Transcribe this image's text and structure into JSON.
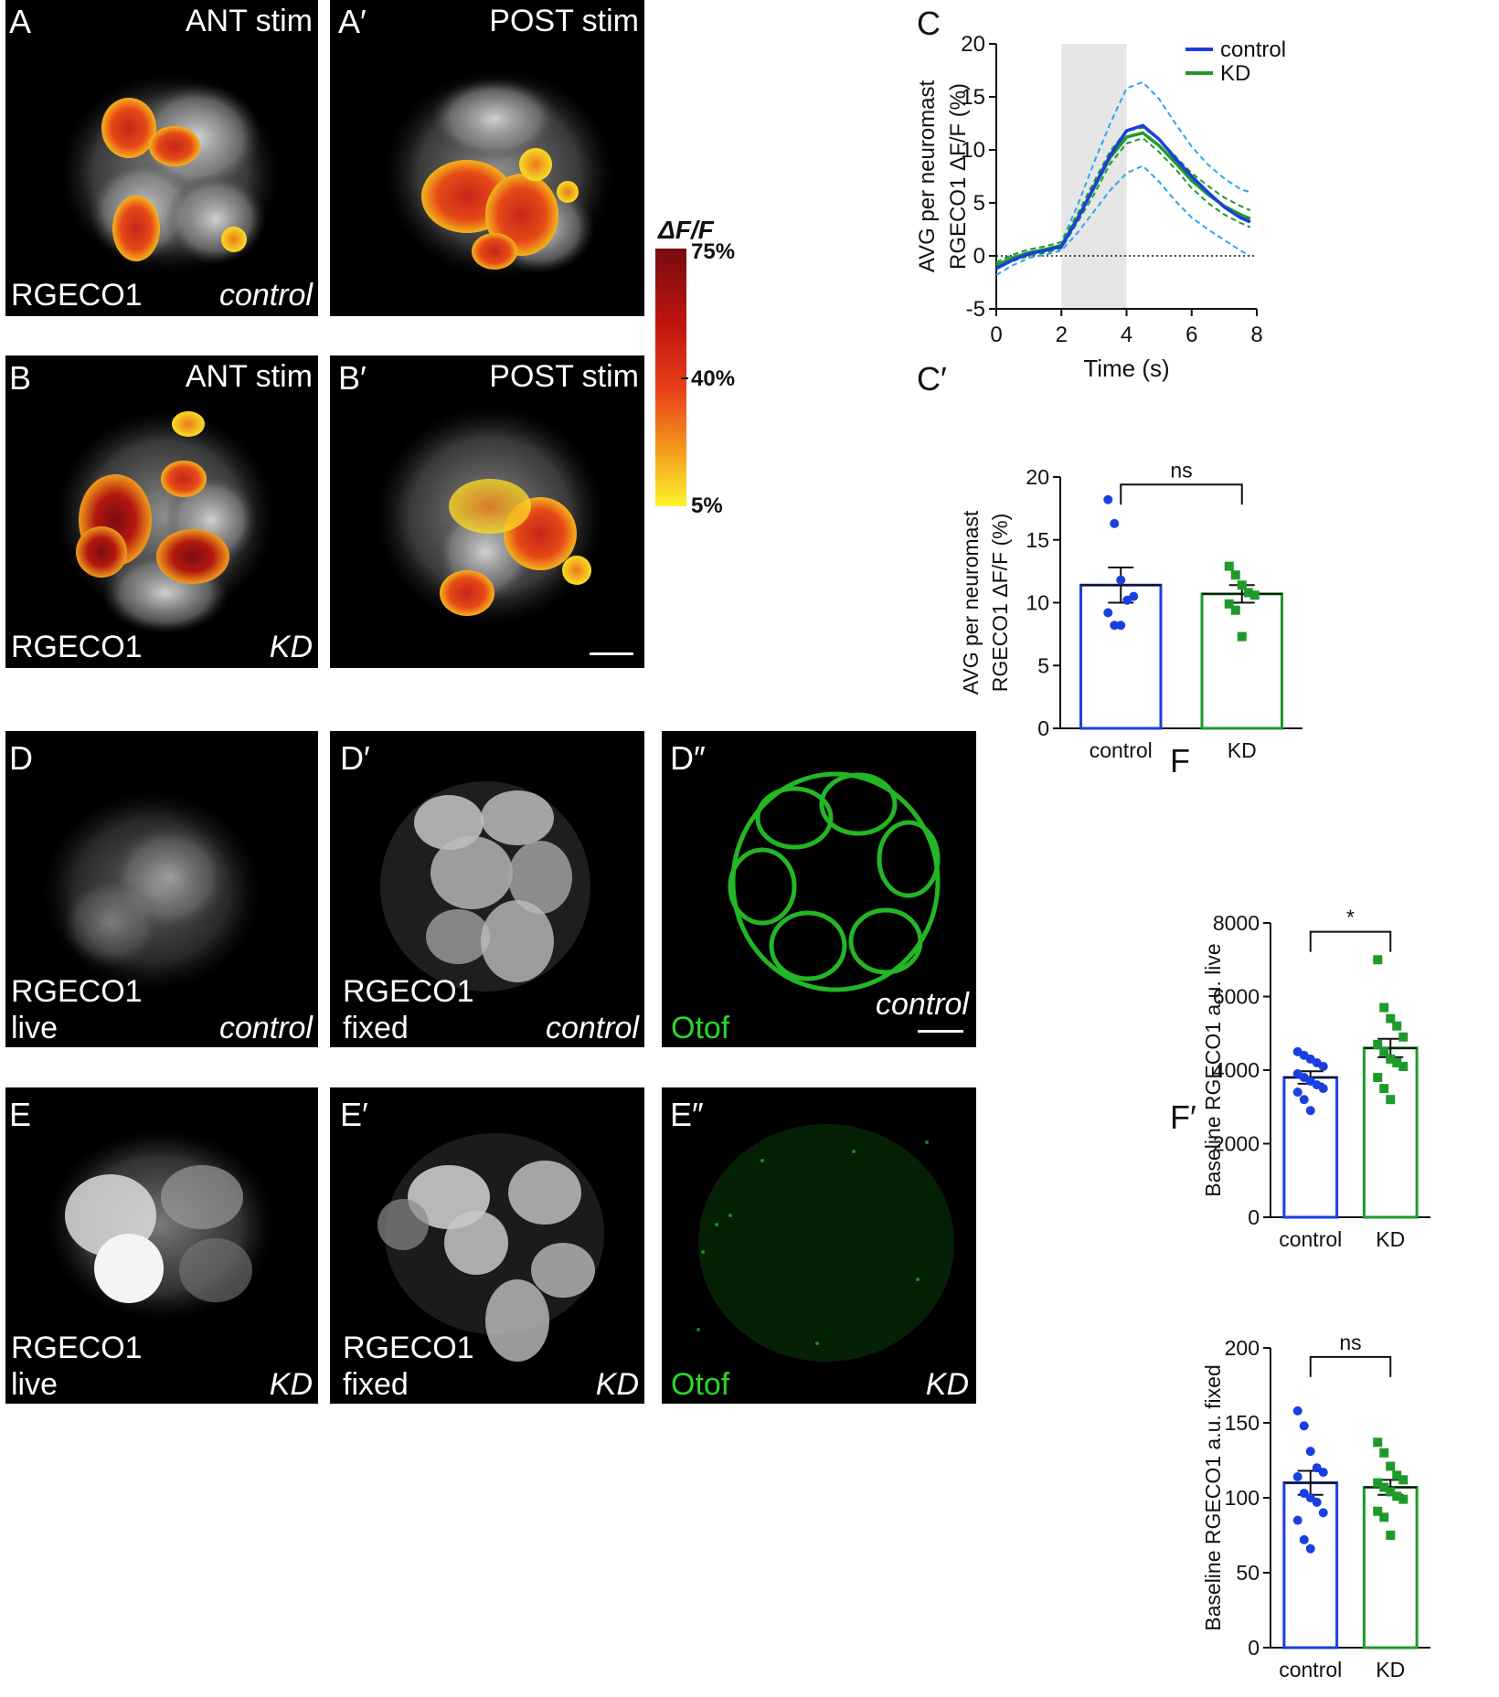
{
  "panels": {
    "A": {
      "letter": "A",
      "top_right": "ANT stim",
      "bottom_left": "RGECO1",
      "bottom_right": "control"
    },
    "A2": {
      "letter": "A′",
      "top_right": "POST stim"
    },
    "B": {
      "letter": "B",
      "top_right": "ANT stim",
      "bottom_left": "RGECO1",
      "bottom_right": "KD"
    },
    "B2": {
      "letter": "B′",
      "top_right": "POST stim"
    },
    "D": {
      "letter": "D",
      "line1": "RGECO1",
      "line2": "live",
      "bottom_right": "control"
    },
    "D2": {
      "letter": "D′",
      "line1": "RGECO1",
      "line2": "fixed",
      "bottom_right": "control"
    },
    "D3": {
      "letter": "D″",
      "bottom_left": "Otof",
      "bottom_right": "control"
    },
    "E": {
      "letter": "E",
      "line1": "RGECO1",
      "line2": "live",
      "bottom_right": "KD"
    },
    "E2": {
      "letter": "E′",
      "line1": "RGECO1",
      "line2": "fixed",
      "bottom_right": "KD"
    },
    "E3": {
      "letter": "E″",
      "bottom_left": "Otof",
      "bottom_right": "KD"
    }
  },
  "colorbar": {
    "title": "ΔF/F",
    "ticks": [
      "75%",
      "40%",
      "5%"
    ]
  },
  "chart_letters": {
    "C": "C",
    "C2": "C′",
    "F": "F",
    "F2": "F′"
  },
  "colors": {
    "control": "#1a3fe0",
    "KD": "#1e9a2a",
    "control_sem": "#2aa8e8",
    "KD_sem": "#1e9a2a",
    "stim_shade": "#e6e6e6",
    "otof_green": "#2bd62b"
  },
  "chart_data": [
    {
      "id": "C",
      "type": "line",
      "xlabel": "Time (s)",
      "ylabel": [
        "AVG per neuromast",
        "RGECO1 ΔF/F (%)"
      ],
      "xlim": [
        0,
        8
      ],
      "ylim": [
        -5,
        20
      ],
      "xticks": [
        "0",
        "2",
        "4",
        "6",
        "8"
      ],
      "yticks": [
        "-5",
        "0",
        "5",
        "10",
        "15",
        "20"
      ],
      "shaded_interval": [
        2,
        4
      ],
      "zero_line": true,
      "legend_position": "top-right",
      "x": [
        0,
        0.5,
        1,
        1.5,
        2,
        2.5,
        3,
        3.5,
        4,
        4.5,
        5,
        5.5,
        6,
        6.5,
        7,
        7.5,
        7.8
      ],
      "series": [
        {
          "name": "control",
          "values": [
            -1.2,
            -0.4,
            0.2,
            0.5,
            0.9,
            3.5,
            6.5,
            9.5,
            11.8,
            12.3,
            11.0,
            9.2,
            7.5,
            6.0,
            4.6,
            3.6,
            3.2
          ],
          "sem_upper": [
            -0.6,
            0.1,
            0.6,
            0.9,
            1.3,
            4.8,
            8.8,
            12.5,
            15.8,
            16.4,
            14.8,
            12.5,
            10.3,
            8.6,
            7.3,
            6.3,
            6.0
          ],
          "sem_lower": [
            -1.8,
            -0.9,
            -0.2,
            0.1,
            0.5,
            2.2,
            4.2,
            6.2,
            7.8,
            8.5,
            7.0,
            5.2,
            3.6,
            2.5,
            1.5,
            0.5,
            0.0
          ]
        },
        {
          "name": "KD",
          "values": [
            -0.9,
            -0.2,
            0.3,
            0.6,
            1.0,
            3.6,
            6.4,
            9.3,
            11.2,
            11.6,
            10.4,
            8.8,
            7.1,
            5.8,
            4.7,
            3.9,
            3.5
          ],
          "sem_upper": [
            -0.6,
            0.1,
            0.6,
            0.9,
            1.3,
            4.0,
            7.0,
            9.9,
            11.8,
            12.1,
            11.0,
            9.4,
            7.8,
            6.6,
            5.5,
            4.7,
            4.3
          ],
          "sem_lower": [
            -1.2,
            -0.5,
            0.0,
            0.3,
            0.7,
            3.2,
            5.8,
            8.7,
            10.6,
            11.1,
            9.8,
            8.2,
            6.4,
            5.0,
            3.9,
            3.1,
            2.7
          ]
        }
      ]
    },
    {
      "id": "C2",
      "type": "bar",
      "ylabel": [
        "AVG per neuromast",
        "RGECO1 ΔF/F (%)"
      ],
      "ylim": [
        0,
        20
      ],
      "yticks": [
        "0",
        "5",
        "10",
        "15",
        "20"
      ],
      "categories": [
        "control",
        "KD"
      ],
      "values": [
        11.4,
        10.7
      ],
      "sem": [
        1.4,
        0.7
      ],
      "significance": "ns",
      "points": [
        [
          18.2,
          16.3,
          11.8,
          10.2,
          10.5,
          9.2,
          8.2,
          8.2
        ],
        [
          12.9,
          12.2,
          11.4,
          10.8,
          10.6,
          9.9,
          9.4,
          7.3
        ]
      ]
    },
    {
      "id": "F",
      "type": "bar",
      "ylabel": [
        "Baseline RGECO1 a.u. live"
      ],
      "ylim": [
        0,
        8000
      ],
      "yticks": [
        "0",
        "2000",
        "4000",
        "6000",
        "8000"
      ],
      "categories": [
        "control",
        "KD"
      ],
      "values": [
        3800,
        4600
      ],
      "sem": [
        170,
        250
      ],
      "significance": "*",
      "points": [
        [
          4500,
          4400,
          4300,
          4200,
          4100,
          3900,
          3800,
          3700,
          3600,
          3500,
          3400,
          3200,
          2900
        ],
        [
          7000,
          5700,
          5400,
          5200,
          4900,
          4700,
          4500,
          4300,
          4200,
          4100,
          3800,
          3500,
          3200
        ]
      ]
    },
    {
      "id": "F2",
      "type": "bar",
      "ylabel": [
        "Baseline RGECO1 a.u. fixed"
      ],
      "ylim": [
        0,
        200
      ],
      "yticks": [
        "0",
        "50",
        "100",
        "150",
        "200"
      ],
      "categories": [
        "control",
        "KD"
      ],
      "values": [
        110,
        107
      ],
      "sem": [
        8,
        5
      ],
      "significance": "ns",
      "points": [
        [
          158,
          148,
          131,
          120,
          117,
          114,
          103,
          100,
          97,
          90,
          85,
          72,
          66
        ],
        [
          137,
          130,
          121,
          115,
          112,
          110,
          107,
          104,
          101,
          99,
          91,
          87,
          75
        ]
      ]
    }
  ]
}
